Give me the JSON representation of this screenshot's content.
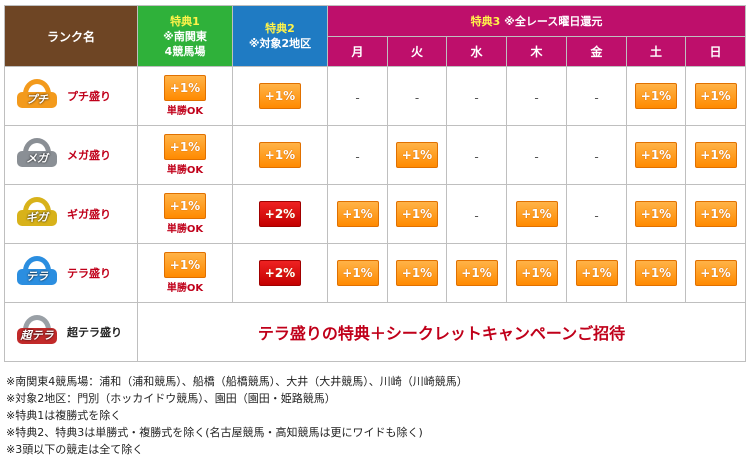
{
  "header": {
    "rank_name": "ランク名",
    "tokuten1": {
      "title": "特典1",
      "line1": "※南関東",
      "line2": "4競馬場"
    },
    "tokuten2": {
      "title": "特典2",
      "line1": "※対象2地区"
    },
    "tokuten3": {
      "title": "特典3",
      "note": "※全レース曜日還元"
    },
    "days": [
      "月",
      "火",
      "水",
      "木",
      "金",
      "土",
      "日"
    ]
  },
  "rows": [
    {
      "icon_text": "プチ",
      "label": "プチ盛り",
      "color": "#f39a1c",
      "t1": "+1%",
      "t1_sub": "単勝OK",
      "t2": "+1%",
      "t2_red": false,
      "days": [
        "-",
        "-",
        "-",
        "-",
        "-",
        "+1%",
        "+1%"
      ]
    },
    {
      "icon_text": "メガ",
      "label": "メガ盛り",
      "color": "#8a8f95",
      "t1": "+1%",
      "t1_sub": "単勝OK",
      "t2": "+1%",
      "t2_red": false,
      "days": [
        "-",
        "+1%",
        "-",
        "-",
        "-",
        "+1%",
        "+1%"
      ]
    },
    {
      "icon_text": "ギガ",
      "label": "ギガ盛り",
      "color": "#d8b21a",
      "t1": "+1%",
      "t1_sub": "単勝OK",
      "t2": "+2%",
      "t2_red": true,
      "days": [
        "+1%",
        "+1%",
        "-",
        "+1%",
        "-",
        "+1%",
        "+1%"
      ]
    },
    {
      "icon_text": "テラ",
      "label": "テラ盛り",
      "color": "#2b8ee0",
      "t1": "+1%",
      "t1_sub": "単勝OK",
      "t2": "+2%",
      "t2_red": true,
      "days": [
        "+1%",
        "+1%",
        "+1%",
        "+1%",
        "+1%",
        "+1%",
        "+1%"
      ]
    }
  ],
  "super_row": {
    "icon_text": "超テラ",
    "label": "超テラ盛り",
    "color": "#c22a2a",
    "promo": "テラ盛りの特典＋シークレットキャンペーンご招待"
  },
  "notes": [
    "※南関東4競馬場：浦和（浦和競馬）、船橋（船橋競馬）、大井（大井競馬）、川崎（川崎競馬）",
    "※対象2地区：門別（ホッカイドウ競馬）、園田（園田・姫路競馬）",
    "※特典1は複勝式を除く",
    "※特典2、特典3は単勝式・複勝式を除く(名古屋競馬・高知競馬は更にワイドも除く)",
    "※3頭以下の競走は全て除く"
  ]
}
